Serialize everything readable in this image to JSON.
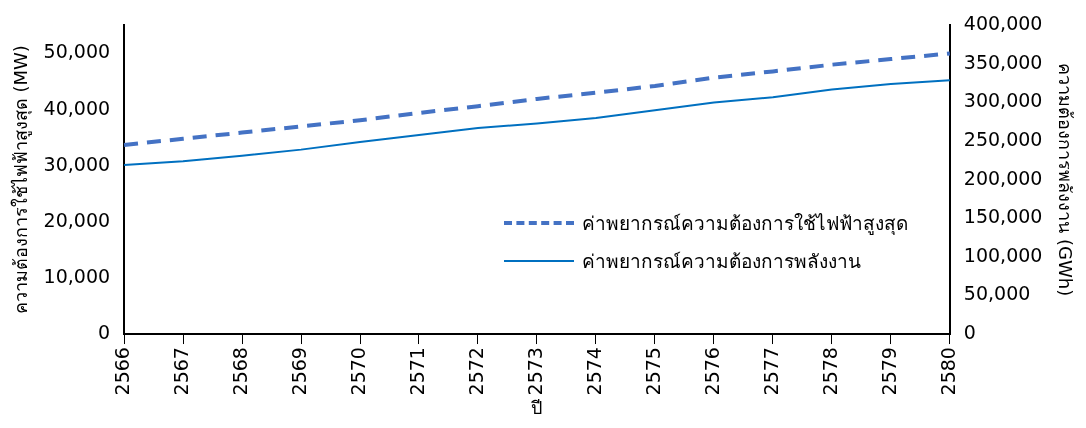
{
  "chart_data": {
    "type": "line",
    "xlabel": "ปี",
    "ylabel": "ความต้องการใช้ไฟฟ้าสูงสุด (MW)",
    "y2label": "ความต้องการพลังงาน (GWh)",
    "categories": [
      "2566",
      "2567",
      "2568",
      "2569",
      "2570",
      "2571",
      "2572",
      "2573",
      "2574",
      "2575",
      "2576",
      "2577",
      "2578",
      "2579",
      "2580"
    ],
    "series": [
      {
        "name": "ค่าพยากรณ์ความต้องการใช้ไฟฟ้าสูงสุด",
        "color": "#4472c4",
        "line_style": "dashed",
        "values": [
          33700,
          34800,
          35900,
          37000,
          38100,
          39400,
          40600,
          41900,
          43000,
          44200,
          45700,
          46800,
          48000,
          49000,
          50000
        ]
      },
      {
        "name": "ค่าพยากรณ์ความต้องการพลังงาน",
        "color": "#0070c0",
        "line_style": "solid",
        "axis": "y2",
        "values": [
          219000,
          224000,
          231000,
          239000,
          249000,
          258000,
          267000,
          273000,
          280000,
          290000,
          300000,
          307000,
          317000,
          324000,
          329000
        ]
      }
    ],
    "ylim": [
      0,
      55000
    ],
    "yticks": [
      0,
      {
        "value": 10000,
        "label": "10,000"
      },
      {
        "value": 20000,
        "label": "20,000"
      },
      {
        "value": 30000,
        "label": "30,000"
      },
      {
        "value": 40000,
        "label": "40,000"
      },
      {
        "value": 50000,
        "label": "50,000"
      }
    ],
    "y2lim": [
      0,
      400000
    ],
    "y2ticks": [
      0,
      {
        "value": 50000,
        "label": "50,000"
      },
      {
        "value": 100000,
        "label": "100,000"
      },
      {
        "value": 150000,
        "label": "150,000"
      },
      {
        "value": 200000,
        "label": "200,000"
      },
      {
        "value": 250000,
        "label": "250,000"
      },
      {
        "value": 300000,
        "label": "300,000"
      },
      {
        "value": 350000,
        "label": "350,000"
      },
      {
        "value": 400000,
        "label": "400,000"
      }
    ],
    "grid": false,
    "legend": "bottom right",
    "marker": "none"
  }
}
